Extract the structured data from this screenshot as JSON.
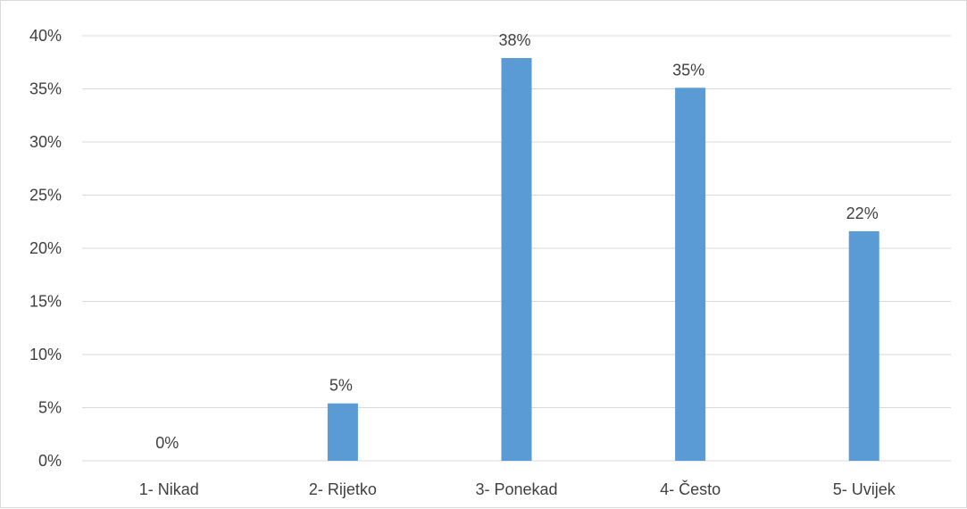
{
  "chart_data": {
    "type": "bar",
    "title": "",
    "xlabel": "",
    "ylabel": "",
    "categories": [
      "1- Nikad",
      "2- Rijetko",
      "3- Ponekad",
      "4- Često",
      "5- Uvijek"
    ],
    "values": [
      0,
      5.4,
      37.9,
      35.1,
      21.6
    ],
    "data_labels": [
      "0%",
      "5%",
      "38%",
      "35%",
      "22%"
    ],
    "ylim": [
      0,
      40
    ],
    "yticks": [
      "0%",
      "5%",
      "10%",
      "15%",
      "20%",
      "25%",
      "30%",
      "35%",
      "40%"
    ],
    "grid": true,
    "legend": "none",
    "bar_color": "#5b9bd5",
    "grid_color": "#d9d9d9",
    "text_color": "#404040"
  }
}
